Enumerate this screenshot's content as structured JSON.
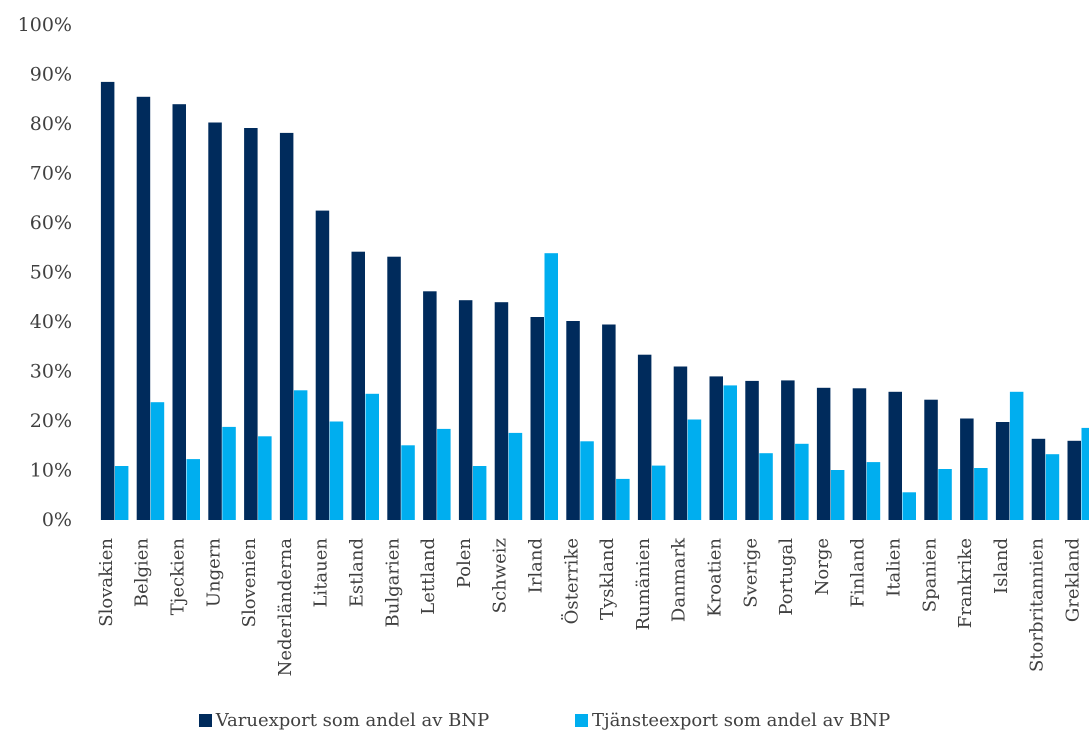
{
  "chart_data": {
    "type": "bar",
    "categories": [
      "Slovakien",
      "Belgien",
      "Tjeckien",
      "Ungern",
      "Slovenien",
      "Nederländerna",
      "Litauen",
      "Estland",
      "Bulgarien",
      "Lettland",
      "Polen",
      "Schweiz",
      "Irland",
      "Österrike",
      "Tyskland",
      "Rumänien",
      "Danmark",
      "Kroatien",
      "Sverige",
      "Portugal",
      "Norge",
      "Finland",
      "Italien",
      "Spanien",
      "Frankrike",
      "Island",
      "Storbritannien",
      "Grekland"
    ],
    "series": [
      {
        "name": "Varuexport som andel av BNP",
        "color": "#002b5c",
        "values": [
          88.5,
          85.5,
          84.0,
          80.3,
          79.2,
          78.2,
          62.5,
          54.2,
          53.2,
          46.2,
          44.4,
          44.0,
          41.0,
          40.2,
          39.5,
          33.4,
          31.0,
          29.0,
          28.1,
          28.2,
          26.7,
          26.6,
          25.9,
          24.3,
          20.5,
          19.8,
          16.4,
          16.0
        ]
      },
      {
        "name": "Tjänsteexport som andel av BNP",
        "color": "#00aeef",
        "values": [
          10.9,
          23.8,
          12.3,
          18.8,
          16.9,
          26.2,
          19.9,
          25.5,
          15.1,
          18.4,
          10.9,
          17.6,
          53.9,
          15.9,
          8.3,
          11.0,
          20.3,
          27.2,
          13.5,
          15.4,
          10.1,
          11.7,
          5.6,
          10.3,
          10.5,
          25.9,
          13.3,
          18.6
        ]
      }
    ],
    "xlabel": "",
    "ylabel": "",
    "ylim": [
      0,
      100
    ],
    "yticks": [
      "0%",
      "10%",
      "20%",
      "30%",
      "40%",
      "50%",
      "60%",
      "70%",
      "80%",
      "90%",
      "100%"
    ],
    "grid": false,
    "legend": "bottom"
  }
}
